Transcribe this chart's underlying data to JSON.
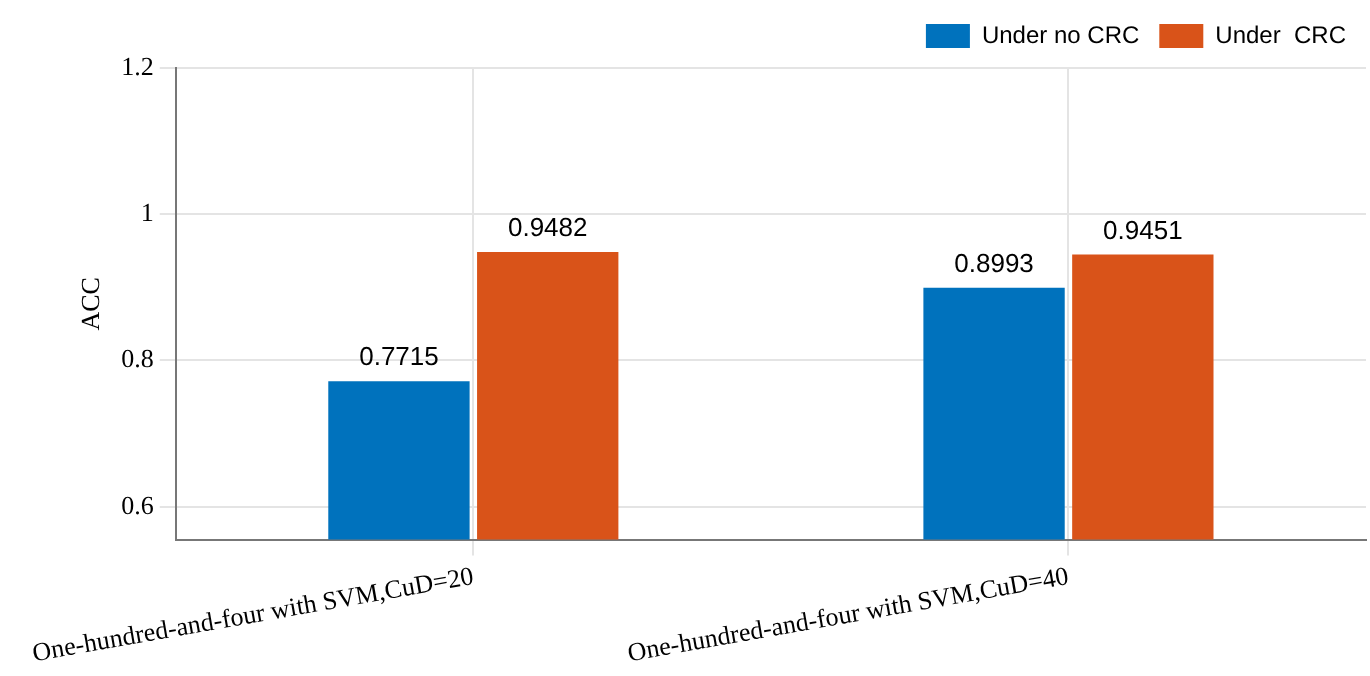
{
  "chart_data": {
    "type": "bar",
    "ylabel": "ACC",
    "categories": [
      "One-hundred-and-four with SVM,CuD=20",
      "One-hundred-and-four with SVM,CuD=40"
    ],
    "series": [
      {
        "name": "Under no CRC",
        "color": "#0072bd",
        "values": [
          0.7715,
          0.8993
        ]
      },
      {
        "name": "Under  CRC",
        "color": "#d95319",
        "values": [
          0.9482,
          0.9451
        ]
      }
    ],
    "ylim": [
      0.555,
      1.2
    ],
    "yticks": [
      0.6,
      0.8,
      {
        "value": 1,
        "label": "1"
      },
      1.2
    ],
    "grid": true,
    "legend": "top right",
    "data_labels": true
  }
}
